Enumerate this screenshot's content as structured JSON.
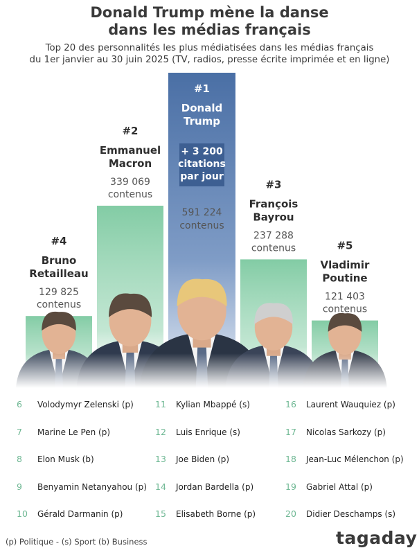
{
  "title_lines": [
    "Donald Trump mène la danse",
    "dans les médias français"
  ],
  "subtitle_lines": [
    "Top 20 des personnalités les plus médiatisées dans les médias français",
    "du 1er janvier au 30 juin 2025 (TV, radios, presse écrite imprimée et en ligne)"
  ],
  "chart_data": {
    "type": "bar",
    "categories": [
      "Bruno Retailleau",
      "Emmanuel Macron",
      "Donald Trump",
      "François Bayrou",
      "Vladimir Poutine"
    ],
    "values": [
      129825,
      339069,
      591224,
      237288,
      121403
    ],
    "ranks": [
      "#4",
      "#2",
      "#1",
      "#3",
      "#5"
    ],
    "name_lines": [
      [
        "Bruno",
        "Retailleau"
      ],
      [
        "Emmanuel",
        "Macron"
      ],
      [
        "Donald",
        "Trump"
      ],
      [
        "François",
        "Bayrou"
      ],
      [
        "Vladimir",
        "Poutine"
      ]
    ],
    "count_lines": [
      [
        "129 825",
        "contenus"
      ],
      [
        "339 069",
        "contenus"
      ],
      [
        "591 224",
        "contenus"
      ],
      [
        "237 288",
        "contenus"
      ],
      [
        "121 403",
        "contenus"
      ]
    ],
    "highlight_lines": [
      "+ 3 200",
      "citations",
      "par jour"
    ],
    "colors": {
      "green": "#7cc9a0",
      "blue": "#4a6fa5",
      "highlight_bg": "#3d5f92"
    }
  },
  "ranking": [
    {
      "rank": "6",
      "name": "Volodymyr Zelenski (p)"
    },
    {
      "rank": "7",
      "name": "Marine Le Pen (p)"
    },
    {
      "rank": "8",
      "name": "Elon Musk (b)"
    },
    {
      "rank": "9",
      "name": "Benyamin Netanyahou (p)"
    },
    {
      "rank": "10",
      "name": "Gérald Darmanin (p)"
    },
    {
      "rank": "11",
      "name": "Kylian Mbappé (s)"
    },
    {
      "rank": "12",
      "name": "Luis Enrique (s)"
    },
    {
      "rank": "13",
      "name": "Joe Biden (p)"
    },
    {
      "rank": "14",
      "name": "Jordan Bardella (p)"
    },
    {
      "rank": "15",
      "name": "Elisabeth Borne (p)"
    },
    {
      "rank": "16",
      "name": "Laurent Wauquiez (p)"
    },
    {
      "rank": "17",
      "name": "Nicolas Sarkozy (p)"
    },
    {
      "rank": "18",
      "name": "Jean-Luc Mélenchon (p)"
    },
    {
      "rank": "19",
      "name": "Gabriel Attal (p)"
    },
    {
      "rank": "20",
      "name": "Didier Deschamps (s)"
    }
  ],
  "legend": "(p) Politique - (s) Sport (b) Business",
  "logo": "tagaday"
}
